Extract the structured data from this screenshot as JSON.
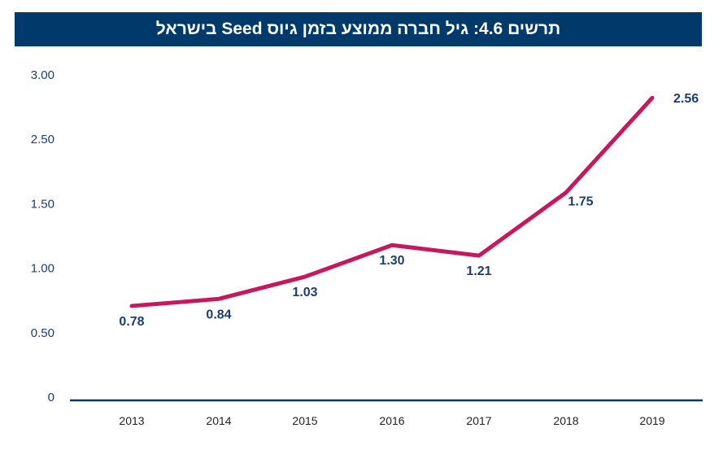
{
  "chart_data": {
    "type": "line",
    "title": "תרשים 4.6: גיל חברה ממוצע בזמן גיוס Seed בישראל",
    "categories": [
      "2013",
      "2014",
      "2015",
      "2016",
      "2017",
      "2018",
      "2019"
    ],
    "series": [
      {
        "values": [
          0.78,
          0.84,
          1.03,
          1.3,
          1.21,
          1.75,
          2.56
        ],
        "data_labels": [
          "0.78",
          "0.84",
          "1.03",
          "1.30",
          "1.21",
          "1.75",
          "2.56"
        ]
      }
    ],
    "y_tick_labels": [
      "0",
      "0.50",
      "1.00",
      "1.50",
      "2.50",
      "3.00"
    ],
    "ylim": [
      0,
      3
    ],
    "grid": false,
    "colors": {
      "line": "#c8175d",
      "title_bg": "#003a6a",
      "labels": "#1d3f6e"
    }
  }
}
